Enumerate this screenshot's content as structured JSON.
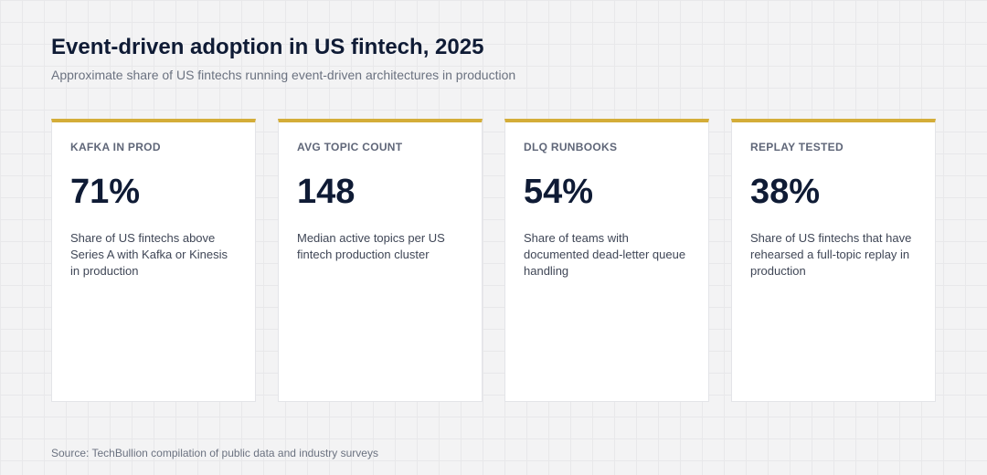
{
  "header": {
    "title": "Event-driven adoption in US fintech, 2025",
    "subtitle": "Approximate share of US fintechs running event-driven architectures in production"
  },
  "accent_color": "#d4ad38",
  "cards": [
    {
      "label": "KAFKA IN PROD",
      "value": "71%",
      "description": "Share of US fintechs above Series A with Kafka or Kinesis in production"
    },
    {
      "label": "AVG TOPIC COUNT",
      "value": "148",
      "description": "Median active topics per US fintech production cluster"
    },
    {
      "label": "DLQ RUNBOOKS",
      "value": "54%",
      "description": "Share of teams with documented dead-letter queue handling"
    },
    {
      "label": "REPLAY TESTED",
      "value": "38%",
      "description": "Share of US fintechs that have rehearsed a full-topic replay in production"
    }
  ],
  "footer": {
    "source": "Source: TechBullion compilation of public data and industry surveys"
  }
}
